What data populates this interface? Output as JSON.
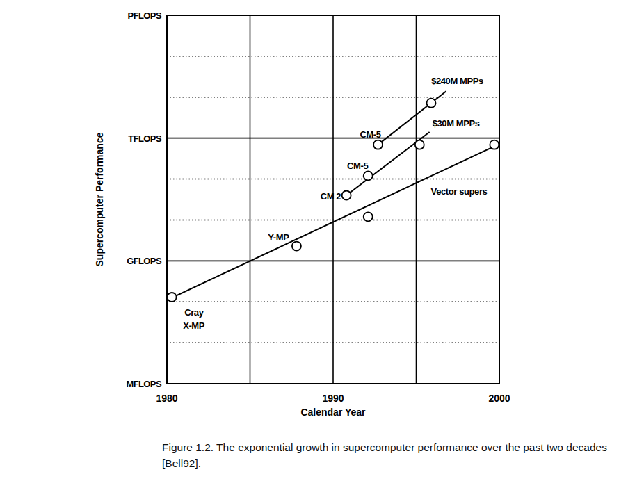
{
  "chart_data": {
    "type": "line",
    "title": "Figure 1.2. The exponential growth in supercomputer performance over the past two decades [Bell92].",
    "x_label": "Calendar Year",
    "y_label": "Supercomputer Performance",
    "log": "y",
    "grid": true,
    "xlim": [
      1980,
      2000
    ],
    "xticks": [
      1980,
      {
        "value": 1985,
        "label": null
      },
      1990,
      {
        "value": 1995,
        "label": null
      },
      2000
    ],
    "ylim": [
      1000000.0,
      1000000000000000.0
    ],
    "yticks": [
      {
        "value": 1000000.0,
        "label": "MFLOPS"
      },
      {
        "value": 10000000.0,
        "label": null
      },
      {
        "value": 100000000.0,
        "label": null
      },
      {
        "value": 1000000000.0,
        "label": "GFLOPS"
      },
      {
        "value": 10000000000.0,
        "label": null
      },
      {
        "value": 100000000000.0,
        "label": null
      },
      {
        "value": 1000000000000.0,
        "label": "TFLOPS"
      },
      {
        "value": 10000000000000.0,
        "label": null
      },
      {
        "value": 100000000000000.0,
        "label": null
      },
      {
        "value": 1000000000000000.0,
        "label": "PFLOPS"
      }
    ],
    "series": [
      {
        "name": "Vector supers",
        "type": "line",
        "color": "#000000",
        "x": [
          1980,
          2000
        ],
        "values": [
          110000000.0,
          720000000000.0
        ]
      },
      {
        "name": "$30M MPPs",
        "type": "line",
        "color": "#000000",
        "x": [
          1990.8,
          1995.8
        ],
        "values": [
          40000000000.0,
          1400000000000.0
        ]
      },
      {
        "name": "$240M MPPs",
        "type": "line",
        "color": "#000000",
        "x": [
          1992.7,
          1996.8
        ],
        "values": [
          690000000000.0,
          14000000000000.0
        ]
      },
      {
        "type": "scatter",
        "color": "#000000",
        "marker": "circle",
        "x": [
          1980.3,
          1987.8,
          1990.8,
          1992.1,
          1992.1,
          1992.7,
          1995.2,
          1995.9,
          1999.7
        ],
        "values": [
          130000000.0,
          2300000000.0,
          40000000000.0,
          120000000000.0,
          12000000000.0,
          690000000000.0,
          690000000000.0,
          7200000000000.0,
          690000000000.0
        ],
        "labels": [
          "Cray X-MP",
          "Y-MP",
          "CM 2",
          "CM-5",
          null,
          "CM-5",
          null,
          null,
          null
        ]
      }
    ]
  }
}
